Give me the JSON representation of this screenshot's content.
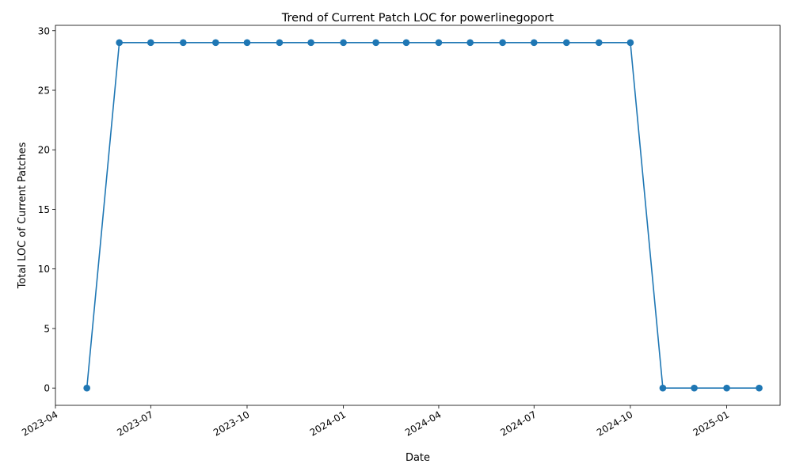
{
  "chart_data": {
    "type": "line",
    "title": "Trend of Current Patch LOC for powerlinegoport",
    "xlabel": "Date",
    "ylabel": "Total LOC of Current Patches",
    "x": [
      "2023-05-01",
      "2023-06-01",
      "2023-07-01",
      "2023-08-01",
      "2023-09-01",
      "2023-10-01",
      "2023-11-01",
      "2023-12-01",
      "2024-01-01",
      "2024-02-01",
      "2024-03-01",
      "2024-04-01",
      "2024-05-01",
      "2024-06-01",
      "2024-07-01",
      "2024-08-01",
      "2024-09-01",
      "2024-10-01",
      "2024-11-01",
      "2024-12-01",
      "2025-01-01",
      "2025-02-01"
    ],
    "series": [
      {
        "values": [
          0,
          29,
          29,
          29,
          29,
          29,
          29,
          29,
          29,
          29,
          29,
          29,
          29,
          29,
          29,
          29,
          29,
          29,
          0,
          0,
          0,
          0
        ],
        "color": "#1f77b4"
      }
    ],
    "xlim": [
      "2023-04-01",
      "2025-02-21"
    ],
    "ylim": [
      -1.45,
      30.45
    ],
    "x_ticks": [
      "2023-04-01",
      "2023-07-01",
      "2023-10-01",
      "2024-01-01",
      "2024-04-01",
      "2024-07-01",
      "2024-10-01",
      "2025-01-01"
    ],
    "x_tick_labels": [
      "2023-04",
      "2023-07",
      "2023-10",
      "2024-01",
      "2024-04",
      "2024-07",
      "2024-10",
      "2025-01"
    ],
    "y_ticks": [
      0,
      5,
      10,
      15,
      20,
      25,
      30
    ],
    "y_tick_labels": [
      "0",
      "5",
      "10",
      "15",
      "20",
      "25",
      "30"
    ],
    "grid": false,
    "markers": true
  }
}
